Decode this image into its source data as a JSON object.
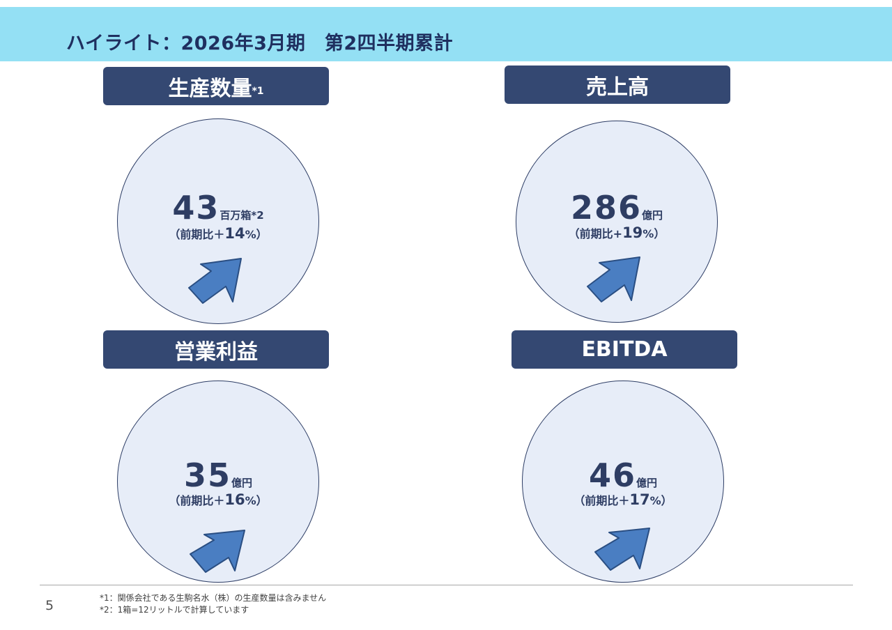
{
  "header": {
    "title": "ハイライト：2026年3月期　第2四半期累計"
  },
  "panels": {
    "production": {
      "label": "生産数量",
      "label_sup": "*1",
      "value": "43",
      "unit": "百万箱*2",
      "cmp_prefix": "（前期比＋",
      "cmp_pct": "14",
      "cmp_suffix": "%）"
    },
    "sales": {
      "label": "売上高",
      "label_sup": "",
      "value": "286",
      "unit": "億円",
      "cmp_prefix": "（前期比+",
      "cmp_pct": "19",
      "cmp_suffix": "%）"
    },
    "operating_profit": {
      "label": "営業利益",
      "label_sup": "",
      "value": "35",
      "unit": "億円",
      "cmp_prefix": "（前期比＋",
      "cmp_pct": "16",
      "cmp_suffix": "%）"
    },
    "ebitda": {
      "label": "EBITDA",
      "label_sup": "",
      "value": "46",
      "unit": "億円",
      "cmp_prefix": "（前期比＋",
      "cmp_pct": "17",
      "cmp_suffix": "%）"
    }
  },
  "footer": {
    "page_number": "5",
    "notes": [
      "*1：関係会社である生駒名水（株）の生産数量は含みません",
      "*2：1箱=12リットルで計算しています"
    ]
  },
  "colors": {
    "header_bg": "#94e0f4",
    "label_bg": "#344872",
    "arrow": "#4a7ec2",
    "circle_bg": "#e7edf8"
  },
  "icons": {
    "trend": "up-right-arrow-icon"
  }
}
